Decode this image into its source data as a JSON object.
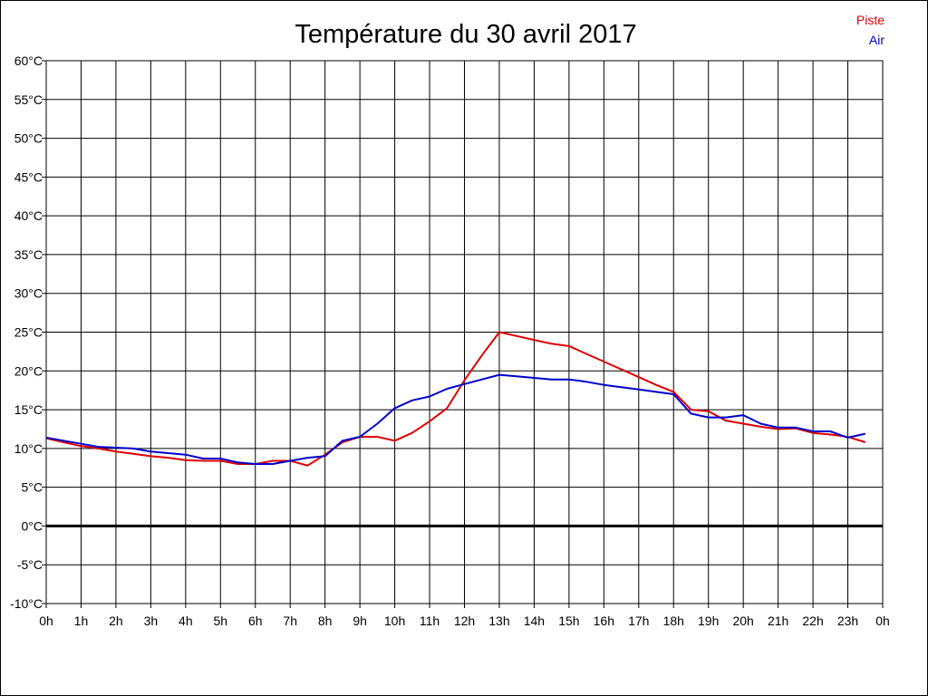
{
  "chart_data": {
    "type": "line",
    "title": "Température du 30 avril 2017",
    "xlabel": "",
    "ylabel": "",
    "x_tick_labels": [
      "0h",
      "1h",
      "2h",
      "3h",
      "4h",
      "5h",
      "6h",
      "7h",
      "8h",
      "9h",
      "10h",
      "11h",
      "12h",
      "13h",
      "14h",
      "15h",
      "16h",
      "17h",
      "18h",
      "19h",
      "20h",
      "21h",
      "22h",
      "23h",
      "0h"
    ],
    "y_tick_labels": [
      "-10°C",
      "-5°C",
      "0°C",
      "5°C",
      "10°C",
      "15°C",
      "20°C",
      "25°C",
      "30°C",
      "35°C",
      "40°C",
      "45°C",
      "50°C",
      "55°C",
      "60°C"
    ],
    "xlim": [
      0,
      24
    ],
    "ylim": [
      -10,
      60
    ],
    "grid": true,
    "legend_position": "top-right",
    "zero_line": true,
    "series": [
      {
        "name": "Piste",
        "color": "#dd0000",
        "x": [
          0,
          0.5,
          1,
          1.5,
          2,
          2.5,
          3,
          3.5,
          4,
          4.5,
          5,
          5.5,
          6,
          6.5,
          7,
          7.5,
          8,
          8.5,
          9,
          9.5,
          10,
          10.5,
          11,
          11.5,
          12,
          12.5,
          13,
          13.5,
          14,
          14.5,
          15,
          15.5,
          16,
          16.5,
          17,
          17.5,
          18,
          18.5,
          19,
          19.5,
          20,
          20.5,
          21,
          21.5,
          22,
          22.5,
          23,
          23.5
        ],
        "values": [
          11.3,
          10.8,
          10.3,
          10.0,
          9.6,
          9.3,
          9.0,
          8.8,
          8.5,
          8.4,
          8.4,
          8.0,
          8.0,
          8.4,
          8.4,
          7.8,
          9.2,
          10.8,
          11.5,
          11.5,
          11.0,
          12.0,
          13.5,
          15.2,
          18.8,
          22.0,
          25.0,
          24.5,
          24.0,
          23.5,
          23.2,
          22.2,
          21.2,
          20.2,
          19.2,
          18.2,
          17.3,
          15.0,
          14.8,
          13.6,
          13.2,
          12.8,
          12.5,
          12.6,
          12.0,
          11.8,
          11.5,
          10.8
        ]
      },
      {
        "name": "Air",
        "color": "#0000cc",
        "x": [
          0,
          0.5,
          1,
          1.5,
          2,
          2.5,
          3,
          3.5,
          4,
          4.5,
          5,
          5.5,
          6,
          6.5,
          7,
          7.5,
          8,
          8.5,
          9,
          9.5,
          10,
          10.5,
          11,
          11.5,
          12,
          12.5,
          13,
          13.5,
          14,
          14.5,
          15,
          15.5,
          16,
          16.5,
          17,
          17.5,
          18,
          18.5,
          19,
          19.5,
          20,
          20.5,
          21,
          21.5,
          22,
          22.5,
          23,
          23.5
        ],
        "values": [
          11.4,
          11.0,
          10.6,
          10.2,
          10.1,
          10.0,
          9.6,
          9.4,
          9.2,
          8.7,
          8.7,
          8.2,
          8.0,
          8.0,
          8.4,
          8.8,
          9.0,
          11.0,
          11.5,
          13.2,
          15.2,
          16.2,
          16.7,
          17.7,
          18.3,
          18.9,
          19.5,
          19.3,
          19.1,
          18.9,
          18.9,
          18.6,
          18.2,
          17.9,
          17.6,
          17.3,
          17.0,
          14.5,
          14.0,
          14.0,
          14.3,
          13.2,
          12.7,
          12.7,
          12.2,
          12.2,
          11.4,
          11.9
        ]
      }
    ]
  }
}
